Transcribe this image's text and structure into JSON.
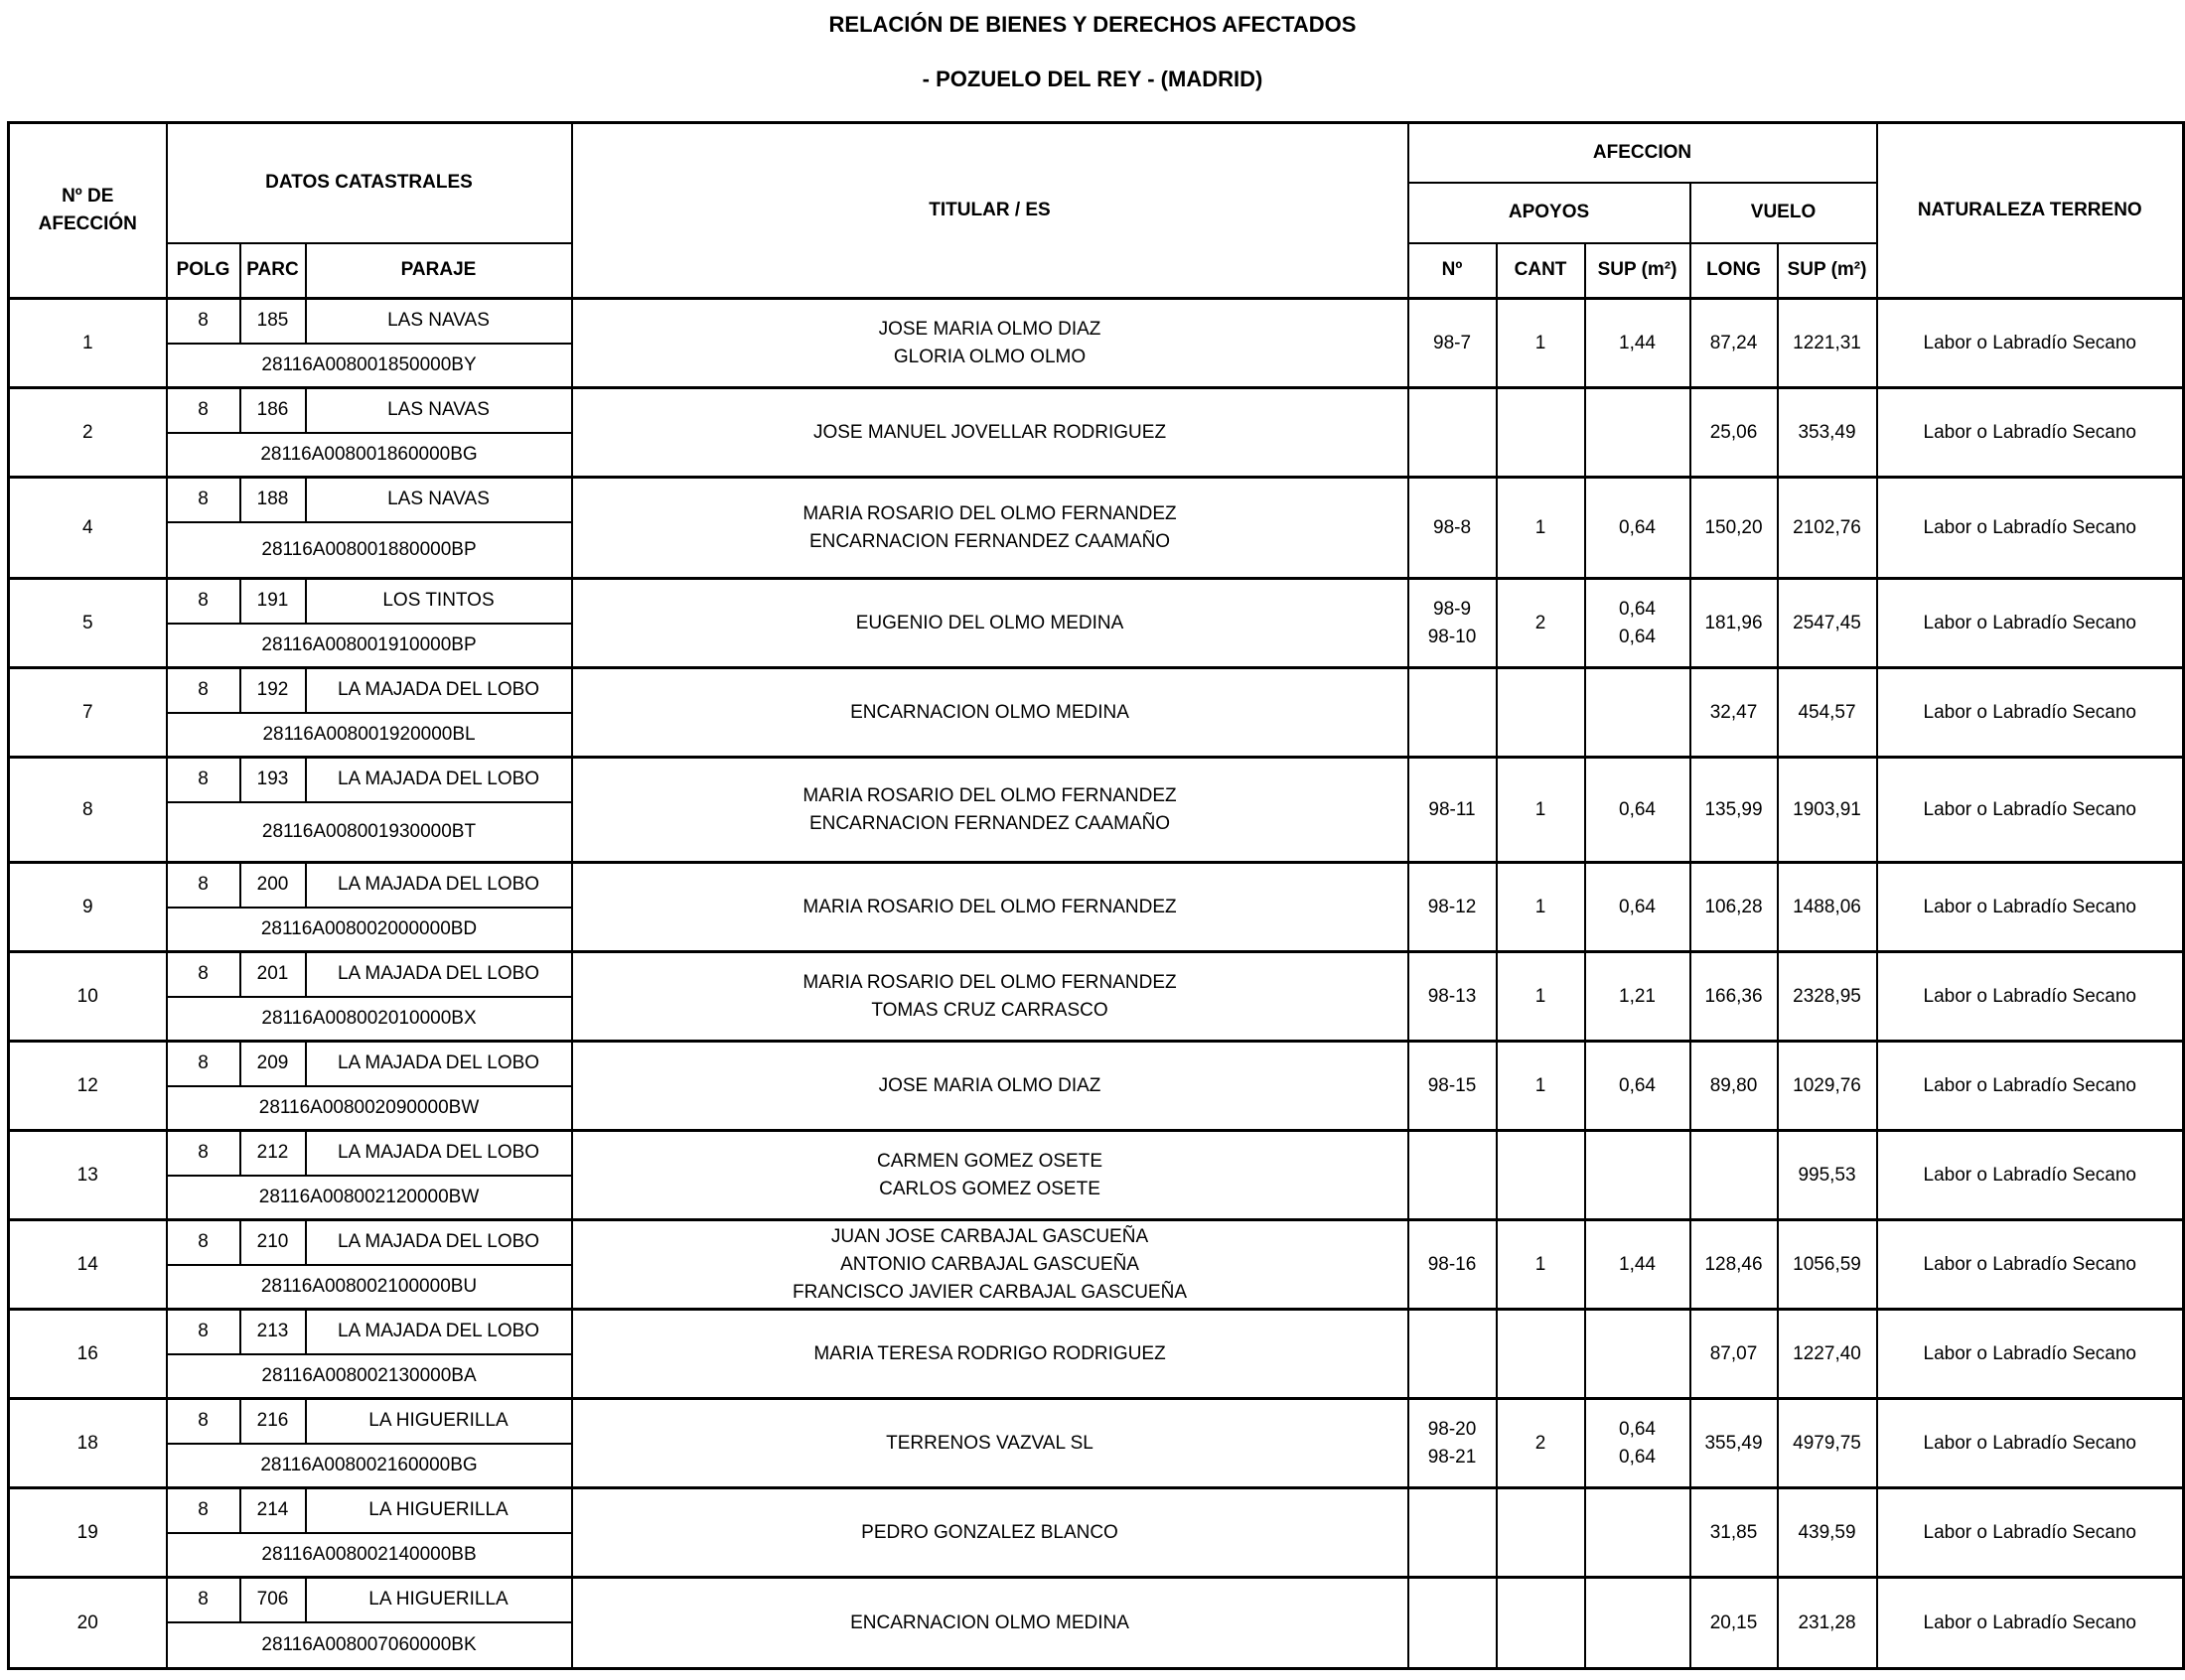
{
  "title": "RELACIÓN DE BIENES Y DERECHOS AFECTADOS",
  "subtitle": "- POZUELO DEL REY - (MADRID)",
  "headers": {
    "n_afeccion": "Nº DE AFECCIÓN",
    "datos_catastrales": "DATOS CATASTRALES",
    "polg": "POLG",
    "parc": "PARC",
    "paraje": "PARAJE",
    "titular": "TITULAR / ES",
    "afeccion": "AFECCION",
    "apoyos": "APOYOS",
    "vuelo": "VUELO",
    "apoyo_n": "Nº",
    "cant": "CANT",
    "apoyo_sup": "SUP (m²)",
    "long": "LONG",
    "vuelo_sup": "SUP (m²)",
    "naturaleza": "NATURALEZA TERRENO"
  },
  "rows": [
    {
      "afeccion": "1",
      "polg": "8",
      "parc": "185",
      "paraje": "LAS NAVAS",
      "refcat": "28116A008001850000BY",
      "titulares": [
        "JOSE MARIA OLMO DIAZ",
        "GLORIA OLMO OLMO"
      ],
      "apoyo_n": [
        "98-7"
      ],
      "cant": "1",
      "apoyo_sup": [
        "1,44"
      ],
      "long": "87,24",
      "vuelo_sup": "1221,31",
      "naturaleza": "Labor o Labradío Secano"
    },
    {
      "afeccion": "2",
      "polg": "8",
      "parc": "186",
      "paraje": "LAS NAVAS",
      "refcat": "28116A008001860000BG",
      "titulares": [
        "JOSE MANUEL JOVELLAR RODRIGUEZ"
      ],
      "apoyo_n": [],
      "cant": "",
      "apoyo_sup": [],
      "long": "25,06",
      "vuelo_sup": "353,49",
      "naturaleza": "Labor o Labradío Secano"
    },
    {
      "afeccion": "4",
      "polg": "8",
      "parc": "188",
      "paraje": "LAS NAVAS",
      "refcat": "28116A008001880000BP",
      "titulares": [
        "MARIA ROSARIO DEL OLMO FERNANDEZ",
        "ENCARNACION FERNANDEZ CAAMAÑO"
      ],
      "apoyo_n": [
        "98-8"
      ],
      "cant": "1",
      "apoyo_sup": [
        "0,64"
      ],
      "long": "150,20",
      "vuelo_sup": "2102,76",
      "naturaleza": "Labor o Labradío Secano"
    },
    {
      "afeccion": "5",
      "polg": "8",
      "parc": "191",
      "paraje": "LOS TINTOS",
      "refcat": "28116A008001910000BP",
      "titulares": [
        "EUGENIO DEL OLMO MEDINA"
      ],
      "apoyo_n": [
        "98-9",
        "98-10"
      ],
      "cant": "2",
      "apoyo_sup": [
        "0,64",
        "0,64"
      ],
      "long": "181,96",
      "vuelo_sup": "2547,45",
      "naturaleza": "Labor o Labradío Secano"
    },
    {
      "afeccion": "7",
      "polg": "8",
      "parc": "192",
      "paraje": "LA MAJADA DEL LOBO",
      "refcat": "28116A008001920000BL",
      "titulares": [
        "ENCARNACION OLMO MEDINA"
      ],
      "apoyo_n": [],
      "cant": "",
      "apoyo_sup": [],
      "long": "32,47",
      "vuelo_sup": "454,57",
      "naturaleza": "Labor o Labradío Secano"
    },
    {
      "afeccion": "8",
      "polg": "8",
      "parc": "193",
      "paraje": "LA MAJADA DEL LOBO",
      "refcat": "28116A008001930000BT",
      "titulares": [
        "MARIA ROSARIO DEL OLMO FERNANDEZ",
        "ENCARNACION FERNANDEZ CAAMAÑO"
      ],
      "apoyo_n": [
        "98-11"
      ],
      "cant": "1",
      "apoyo_sup": [
        "0,64"
      ],
      "long": "135,99",
      "vuelo_sup": "1903,91",
      "naturaleza": "Labor o Labradío Secano"
    },
    {
      "afeccion": "9",
      "polg": "8",
      "parc": "200",
      "paraje": "LA MAJADA DEL LOBO",
      "refcat": "28116A008002000000BD",
      "titulares": [
        "MARIA ROSARIO DEL OLMO FERNANDEZ"
      ],
      "apoyo_n": [
        "98-12"
      ],
      "cant": "1",
      "apoyo_sup": [
        "0,64"
      ],
      "long": "106,28",
      "vuelo_sup": "1488,06",
      "naturaleza": "Labor o Labradío Secano"
    },
    {
      "afeccion": "10",
      "polg": "8",
      "parc": "201",
      "paraje": "LA MAJADA DEL LOBO",
      "refcat": "28116A008002010000BX",
      "titulares": [
        "MARIA ROSARIO DEL OLMO FERNANDEZ",
        "TOMAS CRUZ CARRASCO"
      ],
      "apoyo_n": [
        "98-13"
      ],
      "cant": "1",
      "apoyo_sup": [
        "1,21"
      ],
      "long": "166,36",
      "vuelo_sup": "2328,95",
      "naturaleza": "Labor o Labradío Secano"
    },
    {
      "afeccion": "12",
      "polg": "8",
      "parc": "209",
      "paraje": "LA MAJADA DEL LOBO",
      "refcat": "28116A008002090000BW",
      "titulares": [
        "JOSE MARIA OLMO DIAZ"
      ],
      "apoyo_n": [
        "98-15"
      ],
      "cant": "1",
      "apoyo_sup": [
        "0,64"
      ],
      "long": "89,80",
      "vuelo_sup": "1029,76",
      "naturaleza": "Labor o Labradío Secano"
    },
    {
      "afeccion": "13",
      "polg": "8",
      "parc": "212",
      "paraje": "LA MAJADA DEL LOBO",
      "refcat": "28116A008002120000BW",
      "titulares": [
        "CARMEN GOMEZ OSETE",
        "CARLOS GOMEZ OSETE"
      ],
      "apoyo_n": [],
      "cant": "",
      "apoyo_sup": [],
      "long": "",
      "vuelo_sup": "995,53",
      "naturaleza": "Labor o Labradío Secano"
    },
    {
      "afeccion": "14",
      "polg": "8",
      "parc": "210",
      "paraje": "LA MAJADA DEL LOBO",
      "refcat": "28116A008002100000BU",
      "titulares": [
        "JUAN JOSE CARBAJAL GASCUEÑA",
        "ANTONIO CARBAJAL GASCUEÑA",
        "FRANCISCO JAVIER CARBAJAL GASCUEÑA"
      ],
      "apoyo_n": [
        "98-16"
      ],
      "cant": "1",
      "apoyo_sup": [
        "1,44"
      ],
      "long": "128,46",
      "vuelo_sup": "1056,59",
      "naturaleza": "Labor o Labradío Secano"
    },
    {
      "afeccion": "16",
      "polg": "8",
      "parc": "213",
      "paraje": "LA MAJADA DEL LOBO",
      "refcat": "28116A008002130000BA",
      "titulares": [
        "MARIA TERESA RODRIGO RODRIGUEZ"
      ],
      "apoyo_n": [],
      "cant": "",
      "apoyo_sup": [],
      "long": "87,07",
      "vuelo_sup": "1227,40",
      "naturaleza": "Labor o Labradío Secano"
    },
    {
      "afeccion": "18",
      "polg": "8",
      "parc": "216",
      "paraje": "LA HIGUERILLA",
      "refcat": "28116A008002160000BG",
      "titulares": [
        "TERRENOS VAZVAL SL"
      ],
      "apoyo_n": [
        "98-20",
        "98-21"
      ],
      "cant": "2",
      "apoyo_sup": [
        "0,64",
        "0,64"
      ],
      "long": "355,49",
      "vuelo_sup": "4979,75",
      "naturaleza": "Labor o Labradío Secano"
    },
    {
      "afeccion": "19",
      "polg": "8",
      "parc": "214",
      "paraje": "LA HIGUERILLA",
      "refcat": "28116A008002140000BB",
      "titulares": [
        "PEDRO GONZALEZ BLANCO"
      ],
      "apoyo_n": [],
      "cant": "",
      "apoyo_sup": [],
      "long": "31,85",
      "vuelo_sup": "439,59",
      "naturaleza": "Labor o Labradío Secano"
    },
    {
      "afeccion": "20",
      "polg": "8",
      "parc": "706",
      "paraje": "LA HIGUERILLA",
      "refcat": "28116A008007060000BK",
      "titulares": [
        "ENCARNACION OLMO MEDINA"
      ],
      "apoyo_n": [],
      "cant": "",
      "apoyo_sup": [],
      "long": "20,15",
      "vuelo_sup": "231,28",
      "naturaleza": "Labor o Labradío Secano"
    }
  ]
}
